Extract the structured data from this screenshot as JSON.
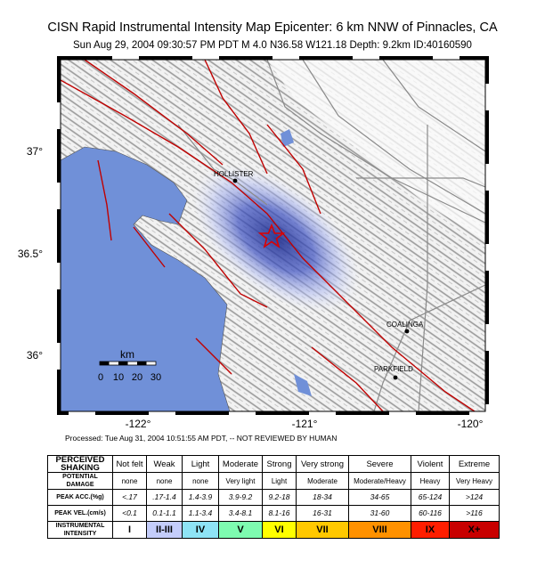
{
  "header": {
    "title": "CISN Rapid Instrumental Intensity Map Epicenter:  6 km NNW of Pinnacles, CA",
    "subtitle": "Sun Aug 29, 2004 09:30:57 PM PDT   M 4.0   N36.58 W121.18  Depth: 9.2km   ID:40160590"
  },
  "map": {
    "lat_labels": [
      "37°",
      "36.5°",
      "36°"
    ],
    "lon_labels": [
      "-122°",
      "-121°",
      "-120°"
    ],
    "cities": [
      "HOLLISTER",
      "COALINGA",
      "PARKFIELD"
    ],
    "scale": {
      "unit": "km",
      "ticks": [
        "0",
        "10",
        "20",
        "30"
      ]
    }
  },
  "processed": "Processed: Tue Aug 31, 2004 10:51:55 AM PDT, -- NOT REVIEWED BY HUMAN",
  "table": {
    "rows": [
      [
        "PERCEIVED SHAKING",
        "Not felt",
        "Weak",
        "Light",
        "Moderate",
        "Strong",
        "Very strong",
        "Severe",
        "Violent",
        "Extreme"
      ],
      [
        "POTENTIAL DAMAGE",
        "none",
        "none",
        "none",
        "Very light",
        "Light",
        "Moderate",
        "Moderate/Heavy",
        "Heavy",
        "Very Heavy"
      ],
      [
        "PEAK ACC.(%g)",
        "<.17",
        ".17-1.4",
        "1.4-3.9",
        "3.9-9.2",
        "9.2-18",
        "18-34",
        "34-65",
        "65-124",
        ">124"
      ],
      [
        "PEAK VEL.(cm/s)",
        "<0.1",
        "0.1-1.1",
        "1.1-3.4",
        "3.4-8.1",
        "8.1-16",
        "16-31",
        "31-60",
        "60-116",
        ">116"
      ],
      [
        "INSTRUMENTAL INTENSITY",
        "I",
        "II-III",
        "IV",
        "V",
        "VI",
        "VII",
        "VIII",
        "IX",
        "X+"
      ]
    ]
  }
}
